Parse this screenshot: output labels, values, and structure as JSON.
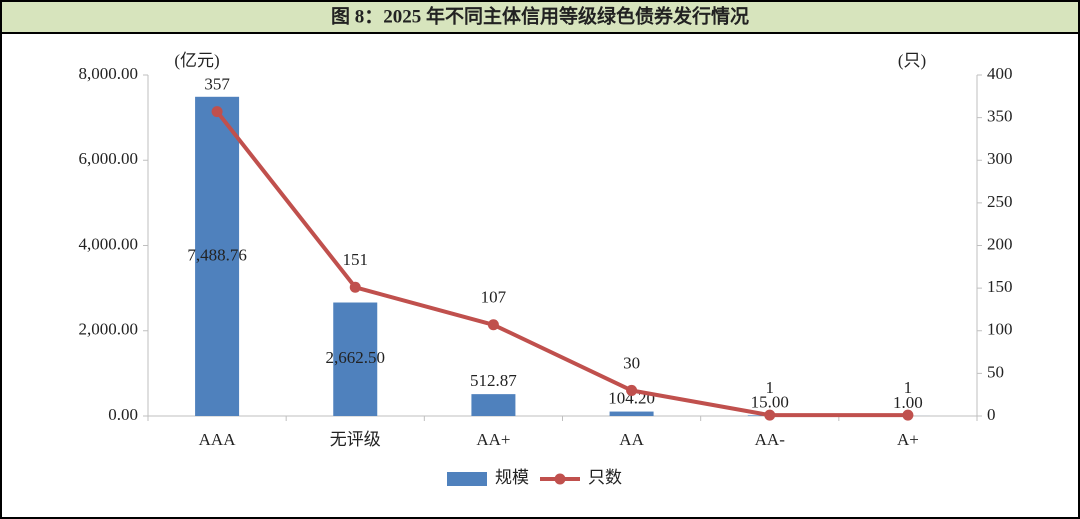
{
  "chart_data": {
    "type": "combo",
    "title": "图 8：2025 年不同主体信用等级绿色债券发行情况",
    "y_unit_label": "(亿元)",
    "y2_unit_label": "(只)",
    "categories": [
      "AAA",
      "无评级",
      "AA+",
      "AA",
      "AA-",
      "A+"
    ],
    "series": [
      {
        "name": "规模",
        "type": "bar",
        "color": "#4f81bd",
        "values": [
          7488.76,
          2662.5,
          512.87,
          104.2,
          15.0,
          1.0
        ],
        "value_labels": [
          "7,488.76",
          "2,662.50",
          "512.87",
          "104.20",
          "15.00",
          "1.00"
        ]
      },
      {
        "name": "只数",
        "type": "line",
        "axis": "y2",
        "color": "#c0504d",
        "values": [
          357,
          151,
          107,
          30,
          1,
          1
        ]
      }
    ],
    "ylim": [
      0,
      8000
    ],
    "yticks": [
      {
        "value": 0,
        "label": "0.00"
      },
      {
        "value": 2000,
        "label": "2,000.00"
      },
      {
        "value": 4000,
        "label": "4,000.00"
      },
      {
        "value": 6000,
        "label": "6,000.00"
      },
      {
        "value": 8000,
        "label": "8,000.00"
      }
    ],
    "y2lim": [
      0,
      400
    ],
    "y2ticks": [
      0,
      50,
      100,
      150,
      200,
      250,
      300,
      350,
      400
    ],
    "grid": false,
    "legend": "bottom"
  }
}
